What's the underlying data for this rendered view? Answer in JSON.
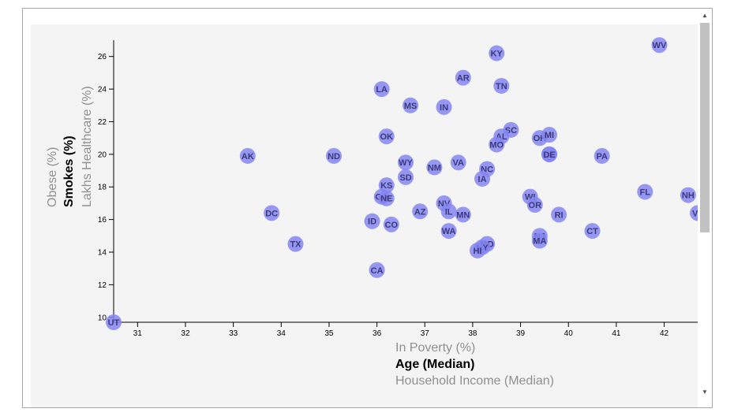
{
  "colors": {
    "marker": "#8585f2",
    "marker_overlap": "#5353e6",
    "plot_bg": "#f4f4f4",
    "inactive_label": "#909090",
    "active_label": "#000000"
  },
  "chart_data": {
    "type": "scatter",
    "x_axis": {
      "labels": [
        {
          "text": "In Poverty (%)",
          "active": false
        },
        {
          "text": "Age (Median)",
          "active": true
        },
        {
          "text": "Household Income (Median)",
          "active": false
        }
      ],
      "range": [
        30.5,
        42.7
      ],
      "ticks": [
        "31",
        "32",
        "33",
        "34",
        "35",
        "36",
        "37",
        "38",
        "39",
        "40",
        "41",
        "42"
      ]
    },
    "y_axis": {
      "labels": [
        {
          "text": "Lakhs Healthcare (%)",
          "active": false
        },
        {
          "text": "Smokes (%)",
          "active": true
        },
        {
          "text": "Obese (%)",
          "active": false
        }
      ],
      "range": [
        9.7,
        27
      ],
      "ticks": [
        "10",
        "12",
        "14",
        "16",
        "18",
        "20",
        "22",
        "24",
        "26"
      ]
    },
    "points": [
      {
        "abbr": "WV",
        "x": 41.9,
        "y": 26.7
      },
      {
        "abbr": "KY",
        "x": 38.5,
        "y": 26.2
      },
      {
        "abbr": "AR",
        "x": 37.8,
        "y": 24.7
      },
      {
        "abbr": "TN",
        "x": 38.6,
        "y": 24.2
      },
      {
        "abbr": "LA",
        "x": 36.1,
        "y": 24.0
      },
      {
        "abbr": "MS",
        "x": 36.7,
        "y": 23.0
      },
      {
        "abbr": "IN",
        "x": 37.4,
        "y": 22.9
      },
      {
        "abbr": "SC",
        "x": 38.8,
        "y": 21.5
      },
      {
        "abbr": "AL",
        "x": 38.6,
        "y": 21.1
      },
      {
        "abbr": "OK",
        "x": 36.2,
        "y": 21.1
      },
      {
        "abbr": "OH",
        "x": 39.4,
        "y": 21.0
      },
      {
        "abbr": "MI",
        "x": 39.6,
        "y": 21.2
      },
      {
        "abbr": "MO",
        "x": 38.5,
        "y": 20.6
      },
      {
        "abbr": "ME",
        "x": 39.6,
        "y": 20.0
      },
      {
        "abbr": "DE",
        "x": 39.6,
        "y": 20.0
      },
      {
        "abbr": "AK",
        "x": 33.3,
        "y": 19.9
      },
      {
        "abbr": "ND",
        "x": 35.1,
        "y": 19.9
      },
      {
        "abbr": "PA",
        "x": 40.7,
        "y": 19.9
      },
      {
        "abbr": "WY",
        "x": 36.6,
        "y": 19.5
      },
      {
        "abbr": "VA",
        "x": 37.7,
        "y": 19.5
      },
      {
        "abbr": "NM",
        "x": 37.2,
        "y": 19.2
      },
      {
        "abbr": "NC",
        "x": 38.3,
        "y": 19.1
      },
      {
        "abbr": "SD",
        "x": 36.6,
        "y": 18.6
      },
      {
        "abbr": "IA",
        "x": 38.2,
        "y": 18.5
      },
      {
        "abbr": "KS",
        "x": 36.2,
        "y": 18.1
      },
      {
        "abbr": "FL",
        "x": 41.6,
        "y": 17.7
      },
      {
        "abbr": "NH",
        "x": 42.5,
        "y": 17.5
      },
      {
        "abbr": "GA",
        "x": 36.1,
        "y": 17.4
      },
      {
        "abbr": "NE",
        "x": 36.2,
        "y": 17.3
      },
      {
        "abbr": "WI",
        "x": 39.2,
        "y": 17.4
      },
      {
        "abbr": "OR",
        "x": 39.3,
        "y": 16.9
      },
      {
        "abbr": "NV",
        "x": 37.4,
        "y": 17.0
      },
      {
        "abbr": "DC",
        "x": 33.8,
        "y": 16.4
      },
      {
        "abbr": "AZ",
        "x": 36.9,
        "y": 16.5
      },
      {
        "abbr": "IL",
        "x": 37.5,
        "y": 16.5
      },
      {
        "abbr": "MN",
        "x": 37.8,
        "y": 16.3
      },
      {
        "abbr": "RI",
        "x": 39.8,
        "y": 16.3
      },
      {
        "abbr": "VT",
        "x": 42.7,
        "y": 16.4
      },
      {
        "abbr": "ID",
        "x": 35.9,
        "y": 15.9
      },
      {
        "abbr": "CO",
        "x": 36.3,
        "y": 15.7
      },
      {
        "abbr": "WA",
        "x": 37.5,
        "y": 15.3
      },
      {
        "abbr": "CT",
        "x": 40.5,
        "y": 15.3
      },
      {
        "abbr": "NJ",
        "x": 39.4,
        "y": 15.0
      },
      {
        "abbr": "MA",
        "x": 39.4,
        "y": 14.7
      },
      {
        "abbr": "TX",
        "x": 34.3,
        "y": 14.5
      },
      {
        "abbr": "MD",
        "x": 38.3,
        "y": 14.5
      },
      {
        "abbr": "NY",
        "x": 38.2,
        "y": 14.3
      },
      {
        "abbr": "HI",
        "x": 38.1,
        "y": 14.1
      },
      {
        "abbr": "CA",
        "x": 36.0,
        "y": 12.9
      },
      {
        "abbr": "UT",
        "x": 30.5,
        "y": 9.7
      }
    ]
  }
}
